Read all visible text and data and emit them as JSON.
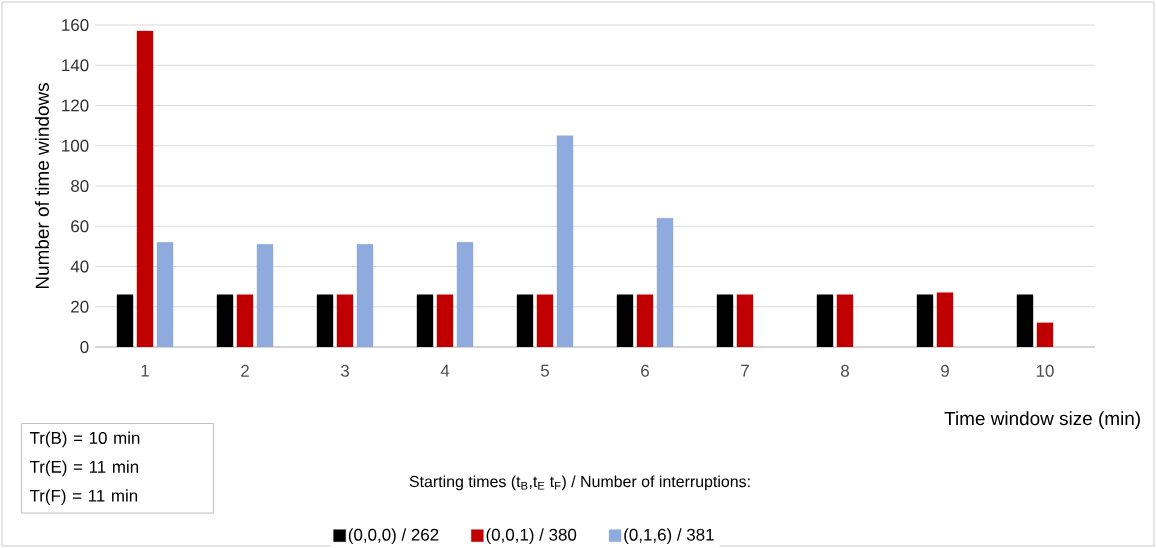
{
  "chart_data": {
    "type": "bar",
    "xlabel": "Time window size (min)",
    "ylabel": "Number of time windows",
    "categories": [
      "1",
      "2",
      "3",
      "4",
      "5",
      "6",
      "7",
      "8",
      "9",
      "10"
    ],
    "series": [
      {
        "name": "(0,0,0) / 262",
        "color": "#000000",
        "values": [
          26,
          26,
          26,
          26,
          26,
          26,
          26,
          26,
          26,
          26
        ]
      },
      {
        "name": "(0,0,1) / 380",
        "color": "#c00000",
        "values": [
          157,
          26,
          26,
          26,
          26,
          26,
          26,
          26,
          27,
          12
        ]
      },
      {
        "name": "(0,1,6) / 381",
        "color": "#8faadc",
        "values": [
          52,
          51,
          51,
          52,
          105,
          64,
          null,
          null,
          null,
          null
        ]
      }
    ],
    "ylim": [
      0,
      160
    ],
    "yticks": [
      0,
      20,
      40,
      60,
      80,
      100,
      120,
      140,
      160
    ],
    "grid": "y",
    "legend": "bottom",
    "legend_title": "Starting times (t$_{B}$,t$_{E}$ t$_{F}$)  / Number of interruptions:",
    "annotations": [
      "Tr(B) = 10 min",
      "Tr(E) = 11 min",
      "Tr(F) = 11 min"
    ]
  }
}
